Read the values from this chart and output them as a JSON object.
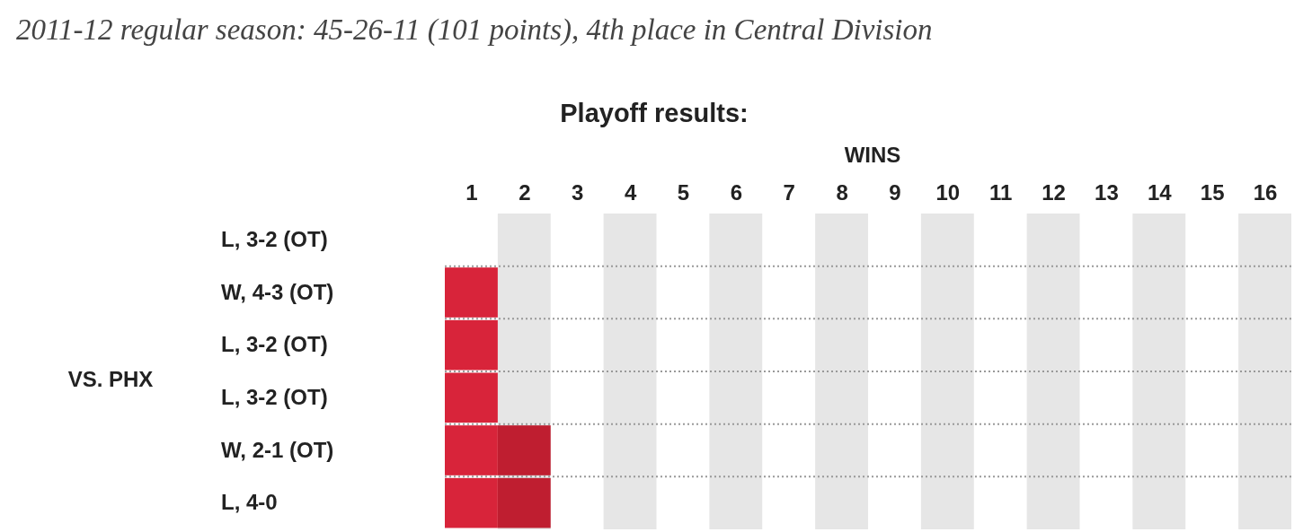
{
  "chart_data": {
    "type": "bar",
    "orientation": "horizontal",
    "stacked": true,
    "title": "2011-12 regular season: 45-26-11 (101 points), 4th place in Central Division",
    "subtitle": "Playoff results:",
    "xlabel": "WINS",
    "categories": [
      "L, 3-2 (OT)",
      "W, 4-3 (OT)",
      "L, 3-2 (OT)",
      "L, 3-2 (OT)",
      "W, 2-1 (OT)",
      "L, 4-0"
    ],
    "series": [
      {
        "color": "#d8243a",
        "values": [
          0,
          1,
          1,
          1,
          1,
          1
        ]
      },
      {
        "color": "#bf1e30",
        "values": [
          0,
          0,
          0,
          0,
          1,
          1
        ]
      }
    ],
    "xlim": [
      0,
      16
    ],
    "xticks": [
      {
        "value": 0.5,
        "label": "1"
      },
      {
        "value": 1.5,
        "label": "2"
      },
      {
        "value": 2.5,
        "label": "3"
      },
      {
        "value": 3.5,
        "label": "4"
      },
      {
        "value": 4.5,
        "label": "5"
      },
      {
        "value": 5.5,
        "label": "6"
      },
      {
        "value": 6.5,
        "label": "7"
      },
      {
        "value": 7.5,
        "label": "8"
      },
      {
        "value": 8.5,
        "label": "9"
      },
      {
        "value": 9.5,
        "label": "10"
      },
      {
        "value": 10.5,
        "label": "11"
      },
      {
        "value": 11.5,
        "label": "12"
      },
      {
        "value": 12.5,
        "label": "13"
      },
      {
        "value": 13.5,
        "label": "14"
      },
      {
        "value": 14.5,
        "label": "15"
      },
      {
        "value": 15.5,
        "label": "16"
      }
    ],
    "bands": [
      {
        "axis": "x",
        "from": 1,
        "to": 2,
        "color": "#e6e6e6"
      },
      {
        "axis": "x",
        "from": 3,
        "to": 4,
        "color": "#e6e6e6"
      },
      {
        "axis": "x",
        "from": 5,
        "to": 6,
        "color": "#e6e6e6"
      },
      {
        "axis": "x",
        "from": 7,
        "to": 8,
        "color": "#e6e6e6"
      },
      {
        "axis": "x",
        "from": 9,
        "to": 10,
        "color": "#e6e6e6"
      },
      {
        "axis": "x",
        "from": 11,
        "to": 12,
        "color": "#e6e6e6"
      },
      {
        "axis": "x",
        "from": 13,
        "to": 14,
        "color": "#e6e6e6"
      },
      {
        "axis": "x",
        "from": 15,
        "to": 16,
        "color": "#e6e6e6"
      }
    ],
    "grid": "y",
    "annotations": [
      "VS. PHX"
    ]
  }
}
